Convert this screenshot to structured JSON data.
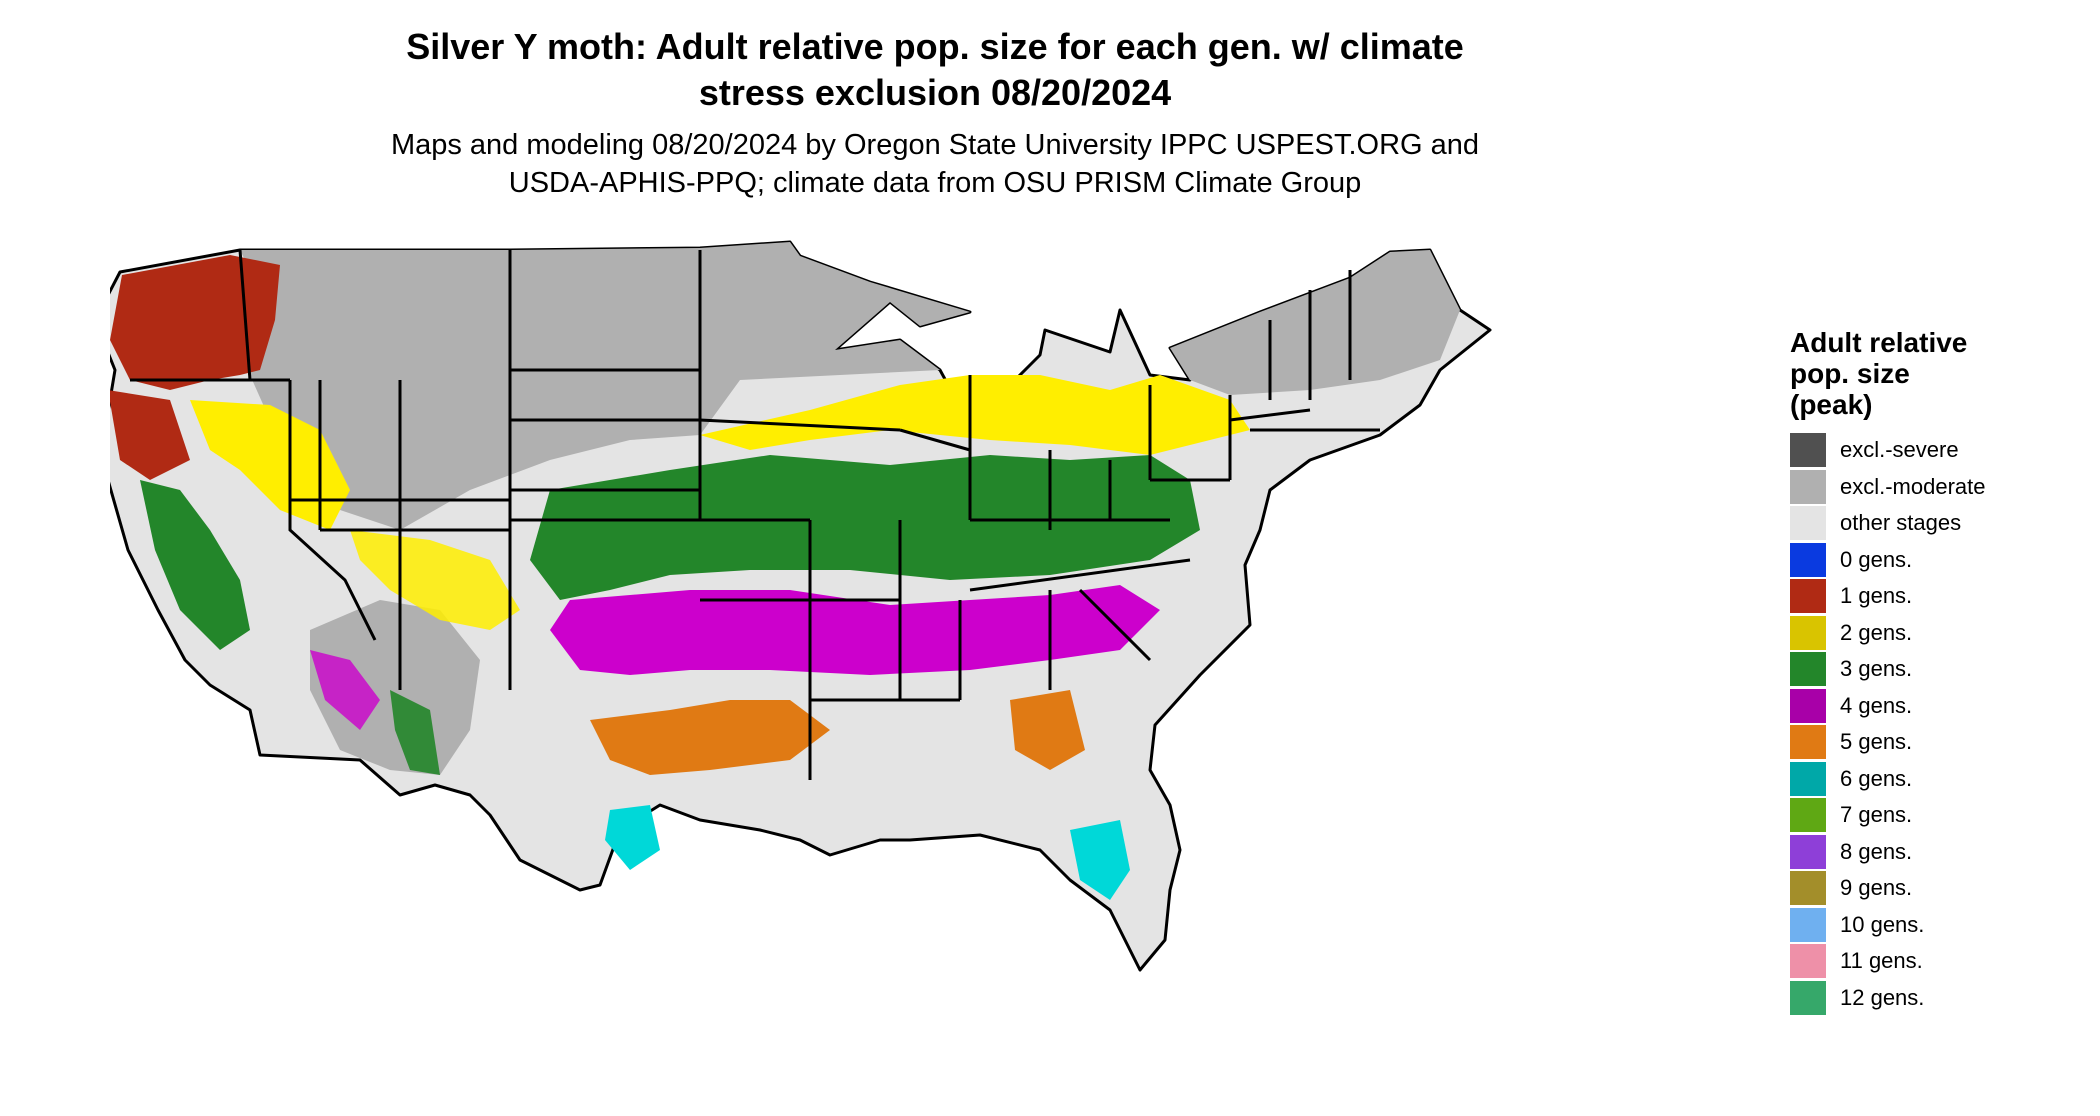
{
  "title_line1": "Silver Y moth: Adult relative pop. size for each gen. w/ climate",
  "title_line2": "stress exclusion 08/20/2024",
  "subtitle_line1": "Maps and modeling 08/20/2024 by Oregon State University IPPC USPEST.ORG and",
  "subtitle_line2": "USDA-APHIS-PPQ; climate data from OSU PRISM Climate Group",
  "legend": {
    "title_lines": [
      "Adult relative",
      "pop. size",
      "(peak)"
    ],
    "items": [
      {
        "label": "excl.-severe",
        "color": "#505050"
      },
      {
        "label": "excl.-moderate",
        "color": "#b0b0b0"
      },
      {
        "label": "other stages",
        "color": "#e4e4e4"
      },
      {
        "label": "0 gens.",
        "color": "#0a3ae0"
      },
      {
        "label": "1 gens.",
        "color": "#b02a14"
      },
      {
        "label": "2 gens.",
        "color": "#d9c400"
      },
      {
        "label": "3 gens.",
        "color": "#23862a"
      },
      {
        "label": "4 gens.",
        "color": "#a800a8"
      },
      {
        "label": "5 gens.",
        "color": "#e07a14"
      },
      {
        "label": "6 gens.",
        "color": "#00a8a8"
      },
      {
        "label": "7 gens.",
        "color": "#5fa814"
      },
      {
        "label": "8 gens.",
        "color": "#8e3fd8"
      },
      {
        "label": "9 gens.",
        "color": "#a38e2a"
      },
      {
        "label": "10 gens.",
        "color": "#6fb0f0"
      },
      {
        "label": "11 gens.",
        "color": "#ee90a8"
      },
      {
        "label": "12 gens.",
        "color": "#36a86a"
      }
    ]
  },
  "map_zones": [
    {
      "id": "northern-plains-excluded",
      "category": "excl.-moderate",
      "color": "#b0b0b0"
    },
    {
      "id": "pacific-northwest-1-gen",
      "category": "1 gens.",
      "color": "#b02a14"
    },
    {
      "id": "great-basin-2-gen",
      "category": "2 gens.",
      "color": "#ffee00"
    },
    {
      "id": "great-lakes-2-gen",
      "category": "2 gens.",
      "color": "#ffee00"
    },
    {
      "id": "mid-south-3-gen",
      "category": "3 gens.",
      "color": "#23862a"
    },
    {
      "id": "southern-belt-4-gen",
      "category": "4 gens.",
      "color": "#cc00cc"
    },
    {
      "id": "gulf-coast-5-gen",
      "category": "5 gens.",
      "color": "#e07a14"
    },
    {
      "id": "florida-6-gen",
      "category": "6 gens.",
      "color": "#00d8d8"
    }
  ]
}
